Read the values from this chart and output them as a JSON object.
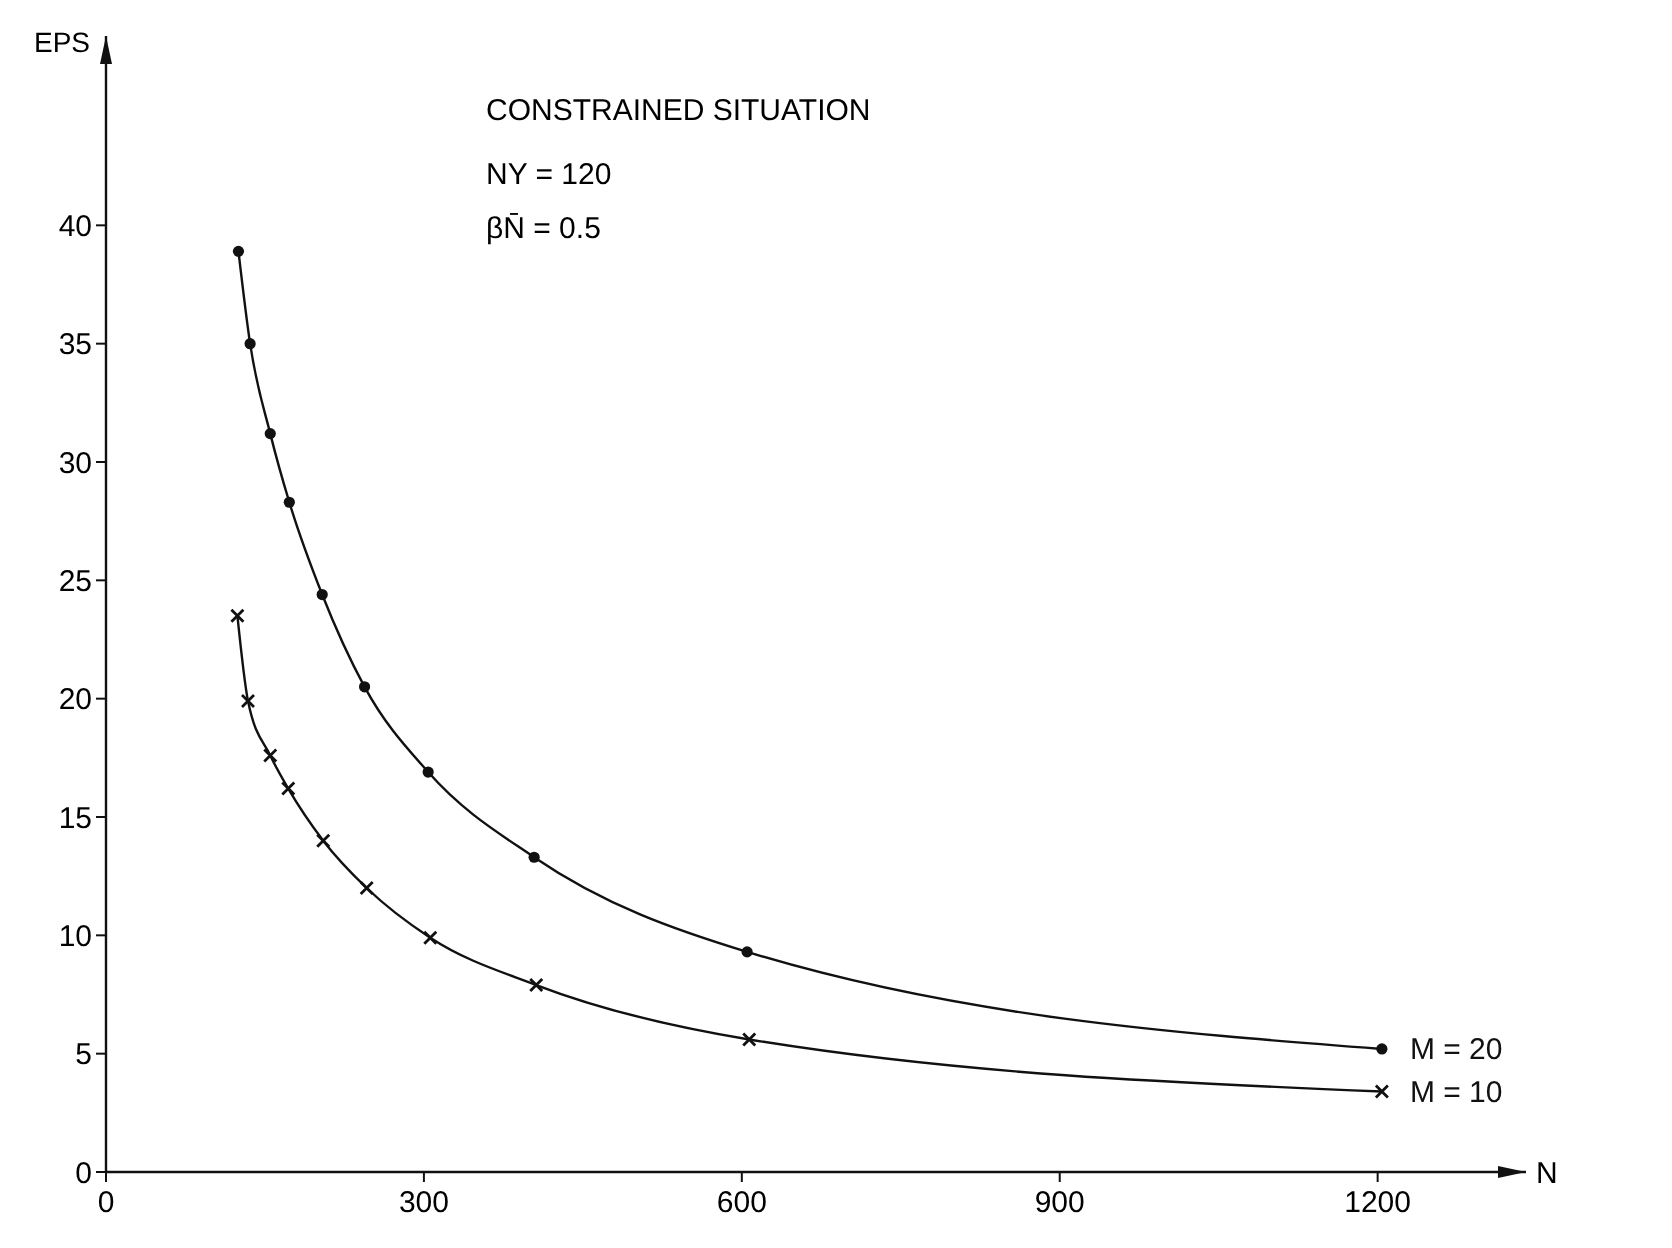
{
  "chart_data": {
    "type": "line",
    "xlabel": "N",
    "ylabel": "EPS",
    "xlim": [
      0,
      1340
    ],
    "ylim": [
      0,
      48
    ],
    "xticks": [
      0,
      300,
      600,
      900,
      1200
    ],
    "yticks": [
      0,
      5,
      10,
      15,
      20,
      25,
      30,
      35,
      40
    ],
    "grid": false,
    "line_style": "solid",
    "annotations": [
      "CONSTRAINED SITUATION",
      "NY = 120",
      "βN̄ = 0.5"
    ],
    "series": [
      {
        "name": "M = 20",
        "color": "#111111",
        "marker": "circle",
        "x": [
          125,
          136,
          155,
          173,
          204,
          244,
          304,
          404,
          605,
          1204
        ],
        "values": [
          38.9,
          35.0,
          31.2,
          28.3,
          24.4,
          20.5,
          16.9,
          13.3,
          9.3,
          5.2
        ]
      },
      {
        "name": "M = 10",
        "color": "#111111",
        "marker": "cross",
        "x": [
          124,
          134,
          155,
          172,
          205,
          246,
          306,
          406,
          607,
          1204
        ],
        "values": [
          23.5,
          19.9,
          17.6,
          16.2,
          14.0,
          12.0,
          9.9,
          7.9,
          5.6,
          3.4
        ]
      }
    ]
  }
}
